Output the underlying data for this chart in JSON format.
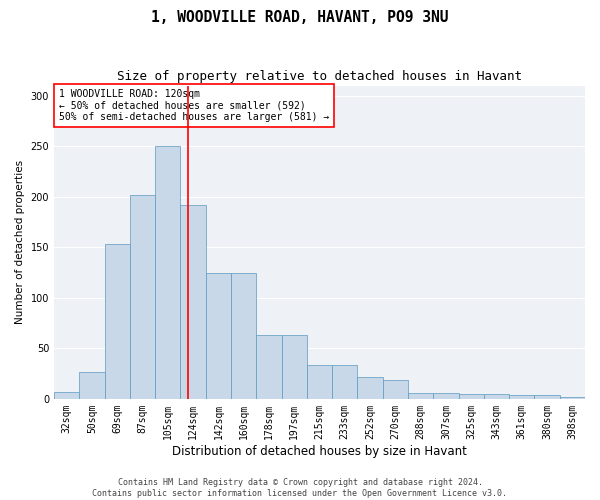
{
  "title1": "1, WOODVILLE ROAD, HAVANT, PO9 3NU",
  "title2": "Size of property relative to detached houses in Havant",
  "xlabel": "Distribution of detached houses by size in Havant",
  "ylabel": "Number of detached properties",
  "bar_color": "#c8d8e8",
  "bar_edge_color": "#5a9abf",
  "background_color": "#eef2f7",
  "grid_color": "#ffffff",
  "categories": [
    "32sqm",
    "50sqm",
    "69sqm",
    "87sqm",
    "105sqm",
    "124sqm",
    "142sqm",
    "160sqm",
    "178sqm",
    "197sqm",
    "215sqm",
    "233sqm",
    "252sqm",
    "270sqm",
    "288sqm",
    "307sqm",
    "325sqm",
    "343sqm",
    "361sqm",
    "380sqm",
    "398sqm"
  ],
  "bar_heights": [
    7,
    27,
    153,
    202,
    250,
    192,
    125,
    125,
    63,
    63,
    33,
    33,
    22,
    19,
    6,
    6,
    5,
    5,
    4,
    4,
    2
  ],
  "vline_pos": 4.79,
  "annotation_line1": "1 WOODVILLE ROAD: 120sqm",
  "annotation_line2": "← 50% of detached houses are smaller (592)",
  "annotation_line3": "50% of semi-detached houses are larger (581) →",
  "ylim": [
    0,
    310
  ],
  "yticks": [
    0,
    50,
    100,
    150,
    200,
    250,
    300
  ],
  "footer_line1": "Contains HM Land Registry data © Crown copyright and database right 2024.",
  "footer_line2": "Contains public sector information licensed under the Open Government Licence v3.0.",
  "title1_fontsize": 10.5,
  "title2_fontsize": 9,
  "xlabel_fontsize": 8.5,
  "ylabel_fontsize": 7.5,
  "tick_fontsize": 7,
  "annotation_fontsize": 7,
  "footer_fontsize": 6
}
